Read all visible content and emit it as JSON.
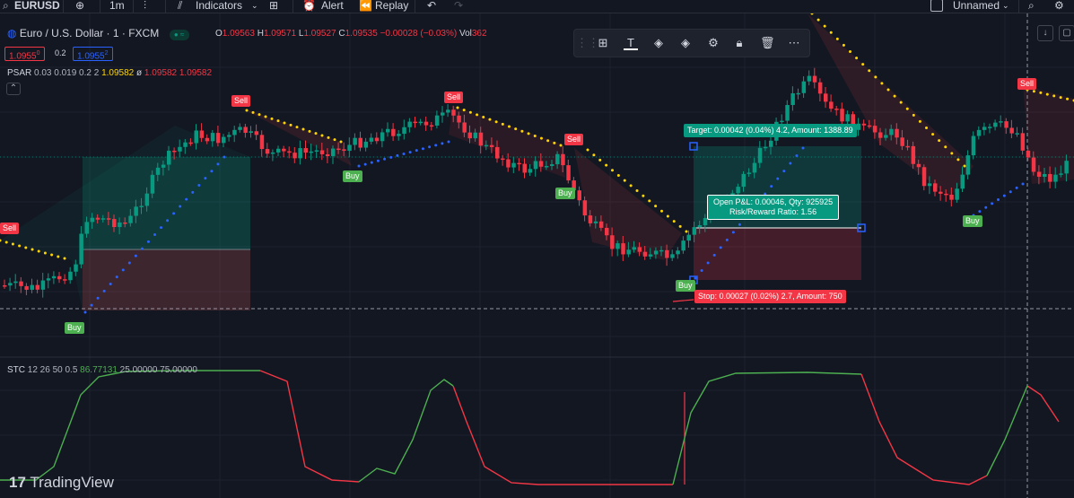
{
  "toolbar": {
    "symbol": "EURUSD",
    "interval": "1m",
    "indicators": "Indicators",
    "alert": "Alert",
    "replay": "Replay",
    "layout_name": "Unnamed"
  },
  "legend": {
    "title": "Euro / U.S. Dollar · 1 · FXCM",
    "ohlc": [
      {
        "k": "O",
        "v": "1.09563"
      },
      {
        "k": "H",
        "v": "1.09571"
      },
      {
        "k": "L",
        "v": "1.09527"
      },
      {
        "k": "C",
        "v": "1.09535"
      }
    ],
    "change": "−0.00028 (−0.03%)",
    "vol_label": "Vol",
    "vol_value": "362",
    "sell_price": "1.0955",
    "sell_sup": "0",
    "spread": "0.2",
    "buy_price": "1.0955",
    "buy_sup": "2"
  },
  "psar": {
    "name": "PSAR",
    "params": "0.03 0.019 0.2 2",
    "v1": "1.09582",
    "v2": "ø",
    "v3": "1.09582",
    "v4": "1.09582"
  },
  "stc": {
    "name": "STC",
    "params": "12 26 50 0.5",
    "v1": "86.77131",
    "v2": "25.00000",
    "v3": "75.00000"
  },
  "signals": {
    "sell": "Sell",
    "buy": "Buy"
  },
  "position": {
    "target": "Target: 0.00042 (0.04%) 4.2, Amount: 1388.89",
    "open_pl": "Open P&L: 0.00046, Qty: 925925",
    "rr": "Risk/Reward Ratio: 1.56",
    "stop": "Stop: 0.00027 (0.02%) 2.7, Amount: 750"
  },
  "branding": {
    "logo": "TradingView"
  },
  "colors": {
    "up": "#089981",
    "down": "#f23645",
    "background": "#131722",
    "psar_up": "#2962ff",
    "psar_down": "#ffd600",
    "stc_up": "#4caf50",
    "stc_down": "#f23645"
  }
}
